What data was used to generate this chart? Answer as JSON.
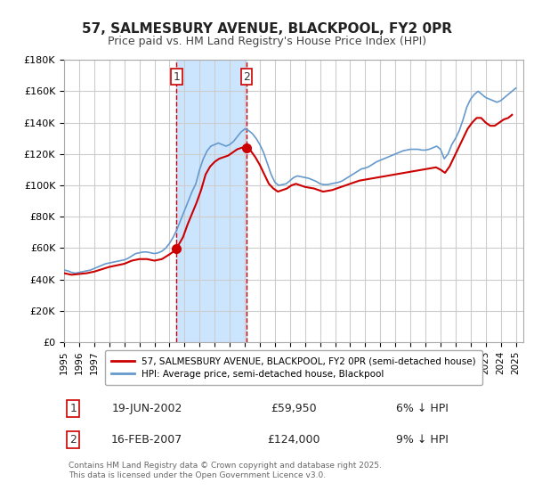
{
  "title": "57, SALMESBURY AVENUE, BLACKPOOL, FY2 0PR",
  "subtitle": "Price paid vs. HM Land Registry's House Price Index (HPI)",
  "xlabel": "",
  "ylabel": "",
  "ylim": [
    0,
    180000
  ],
  "yticks": [
    0,
    20000,
    40000,
    60000,
    80000,
    100000,
    120000,
    140000,
    160000,
    180000
  ],
  "ytick_labels": [
    "£0",
    "£20K",
    "£40K",
    "£60K",
    "£80K",
    "£100K",
    "£120K",
    "£140K",
    "£160K",
    "£180K"
  ],
  "xlim_start": 1995.0,
  "xlim_end": 2025.5,
  "sale1_date": 2002.46,
  "sale1_price": 59950,
  "sale1_label": "1",
  "sale2_date": 2007.12,
  "sale2_price": 124000,
  "sale2_label": "2",
  "shade_color": "#cce5ff",
  "line_color_property": "#cc0000",
  "line_color_hpi": "#6699cc",
  "marker_color": "#cc0000",
  "grid_color": "#cccccc",
  "background_color": "#ffffff",
  "legend_label_1": "57, SALMESBURY AVENUE, BLACKPOOL, FY2 0PR (semi-detached house)",
  "legend_label_2": "HPI: Average price, semi-detached house, Blackpool",
  "table_row1": [
    "1",
    "19-JUN-2002",
    "£59,950",
    "6% ↓ HPI"
  ],
  "table_row2": [
    "2",
    "16-FEB-2007",
    "£124,000",
    "9% ↓ HPI"
  ],
  "footer": "Contains HM Land Registry data © Crown copyright and database right 2025.\nThis data is licensed under the Open Government Licence v3.0.",
  "hpi_data": {
    "dates": [
      1995.0,
      1995.25,
      1995.5,
      1995.75,
      1996.0,
      1996.25,
      1996.5,
      1996.75,
      1997.0,
      1997.25,
      1997.5,
      1997.75,
      1998.0,
      1998.25,
      1998.5,
      1998.75,
      1999.0,
      1999.25,
      1999.5,
      1999.75,
      2000.0,
      2000.25,
      2000.5,
      2000.75,
      2001.0,
      2001.25,
      2001.5,
      2001.75,
      2002.0,
      2002.25,
      2002.5,
      2002.75,
      2003.0,
      2003.25,
      2003.5,
      2003.75,
      2004.0,
      2004.25,
      2004.5,
      2004.75,
      2005.0,
      2005.25,
      2005.5,
      2005.75,
      2006.0,
      2006.25,
      2006.5,
      2006.75,
      2007.0,
      2007.25,
      2007.5,
      2007.75,
      2008.0,
      2008.25,
      2008.5,
      2008.75,
      2009.0,
      2009.25,
      2009.5,
      2009.75,
      2010.0,
      2010.25,
      2010.5,
      2010.75,
      2011.0,
      2011.25,
      2011.5,
      2011.75,
      2012.0,
      2012.25,
      2012.5,
      2012.75,
      2013.0,
      2013.25,
      2013.5,
      2013.75,
      2014.0,
      2014.25,
      2014.5,
      2014.75,
      2015.0,
      2015.25,
      2015.5,
      2015.75,
      2016.0,
      2016.25,
      2016.5,
      2016.75,
      2017.0,
      2017.25,
      2017.5,
      2017.75,
      2018.0,
      2018.25,
      2018.5,
      2018.75,
      2019.0,
      2019.25,
      2019.5,
      2019.75,
      2020.0,
      2020.25,
      2020.5,
      2020.75,
      2021.0,
      2021.25,
      2021.5,
      2021.75,
      2022.0,
      2022.25,
      2022.5,
      2022.75,
      2023.0,
      2023.25,
      2023.5,
      2023.75,
      2024.0,
      2024.25,
      2024.5,
      2024.75,
      2025.0
    ],
    "values": [
      46000,
      45500,
      44500,
      44000,
      44500,
      45000,
      45500,
      46000,
      47000,
      48000,
      49000,
      50000,
      50500,
      51000,
      51500,
      52000,
      52500,
      53500,
      55000,
      56500,
      57000,
      57500,
      57500,
      57000,
      56500,
      57000,
      58000,
      60000,
      63000,
      67000,
      72000,
      78000,
      84000,
      90000,
      96000,
      101000,
      110000,
      117000,
      122000,
      125000,
      126000,
      127000,
      126000,
      125000,
      126000,
      128000,
      131000,
      134000,
      136000,
      135000,
      133000,
      130000,
      126000,
      121000,
      114000,
      107000,
      102000,
      100000,
      100500,
      101000,
      103000,
      105000,
      106000,
      105500,
      105000,
      104500,
      103500,
      102500,
      101000,
      100500,
      100500,
      101000,
      101500,
      102000,
      103000,
      104500,
      106000,
      107500,
      109000,
      110500,
      111000,
      112000,
      113500,
      115000,
      116000,
      117000,
      118000,
      119000,
      120000,
      121000,
      122000,
      122500,
      123000,
      123000,
      123000,
      122500,
      122500,
      123000,
      124000,
      125000,
      123000,
      117000,
      120000,
      126000,
      130000,
      135000,
      142000,
      150000,
      155000,
      158000,
      160000,
      158000,
      156000,
      155000,
      154000,
      153000,
      154000,
      156000,
      158000,
      160000,
      162000
    ]
  },
  "property_data": {
    "dates": [
      1995.0,
      1995.5,
      1996.0,
      1996.5,
      1997.0,
      1997.5,
      1998.0,
      1998.5,
      1999.0,
      1999.5,
      2000.0,
      2000.5,
      2001.0,
      2001.5,
      2002.0,
      2002.3,
      2002.46,
      2002.6,
      2002.9,
      2003.2,
      2003.5,
      2003.8,
      2004.1,
      2004.4,
      2004.7,
      2005.0,
      2005.3,
      2005.6,
      2005.9,
      2006.2,
      2006.5,
      2006.8,
      2007.12,
      2007.4,
      2007.7,
      2008.0,
      2008.3,
      2008.6,
      2008.9,
      2009.2,
      2009.5,
      2009.8,
      2010.1,
      2010.4,
      2010.7,
      2011.0,
      2011.3,
      2011.6,
      2011.9,
      2012.2,
      2012.5,
      2012.8,
      2013.1,
      2013.4,
      2013.7,
      2014.0,
      2014.3,
      2014.6,
      2014.9,
      2015.2,
      2015.5,
      2015.8,
      2016.1,
      2016.4,
      2016.7,
      2017.0,
      2017.3,
      2017.6,
      2017.9,
      2018.2,
      2018.5,
      2018.8,
      2019.1,
      2019.4,
      2019.7,
      2020.0,
      2020.3,
      2020.6,
      2020.9,
      2021.2,
      2021.5,
      2021.8,
      2022.1,
      2022.4,
      2022.7,
      2023.0,
      2023.3,
      2023.6,
      2023.9,
      2024.2,
      2024.5,
      2024.75
    ],
    "values": [
      44000,
      43000,
      43500,
      44000,
      45000,
      46500,
      48000,
      49000,
      50000,
      52000,
      53000,
      53000,
      52000,
      53000,
      56000,
      58000,
      59950,
      62000,
      67000,
      75000,
      82000,
      89000,
      97000,
      107000,
      112000,
      115000,
      117000,
      118000,
      119000,
      121000,
      123000,
      124000,
      124000,
      122000,
      118000,
      113000,
      107000,
      101000,
      98000,
      96000,
      97000,
      98000,
      100000,
      101000,
      100000,
      99000,
      98500,
      98000,
      97000,
      96000,
      96500,
      97000,
      98000,
      99000,
      100000,
      101000,
      102000,
      103000,
      103500,
      104000,
      104500,
      105000,
      105500,
      106000,
      106500,
      107000,
      107500,
      108000,
      108500,
      109000,
      109500,
      110000,
      110500,
      111000,
      111500,
      110000,
      108000,
      112000,
      118000,
      124000,
      130000,
      136000,
      140000,
      143000,
      143000,
      140000,
      138000,
      138000,
      140000,
      142000,
      143000,
      145000
    ]
  }
}
